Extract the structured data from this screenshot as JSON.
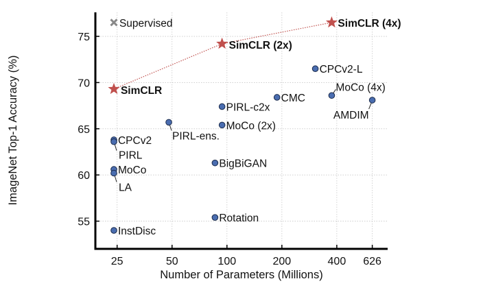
{
  "chart_data": {
    "type": "scatter",
    "title": "",
    "xlabel": "Number of Parameters (Millions)",
    "ylabel": "ImageNet Top-1 Accuracy (%)",
    "x_scale": "log",
    "xlim": [
      19,
      760
    ],
    "ylim": [
      52,
      77.6
    ],
    "x_ticks": [
      25,
      50,
      100,
      200,
      400,
      626
    ],
    "y_ticks": [
      55,
      60,
      65,
      70,
      75
    ],
    "grid": true,
    "colors": {
      "simclr": "#c0504d",
      "supervised": "#888888",
      "other": "#4a6db0",
      "simclr_line": "#c0504d"
    },
    "points": [
      {
        "name": "Supervised",
        "x": 24,
        "y": 76.5,
        "marker": "x",
        "group": "supervised"
      },
      {
        "name": "SimCLR",
        "x": 24,
        "y": 69.3,
        "marker": "star",
        "group": "simclr"
      },
      {
        "name": "SimCLR (2x)",
        "x": 94,
        "y": 74.2,
        "marker": "star",
        "group": "simclr"
      },
      {
        "name": "SimCLR (4x)",
        "x": 375,
        "y": 76.5,
        "marker": "star",
        "group": "simclr"
      },
      {
        "name": "CPCv2-L",
        "x": 305,
        "y": 71.5,
        "marker": "circle",
        "group": "other"
      },
      {
        "name": "MoCo (4x)",
        "x": 375,
        "y": 68.6,
        "marker": "circle",
        "group": "other"
      },
      {
        "name": "AMDIM",
        "x": 626,
        "y": 68.1,
        "marker": "circle",
        "group": "other"
      },
      {
        "name": "CMC",
        "x": 188,
        "y": 68.4,
        "marker": "circle",
        "group": "other"
      },
      {
        "name": "PIRL-c2x",
        "x": 94,
        "y": 67.4,
        "marker": "circle",
        "group": "other"
      },
      {
        "name": "MoCo (2x)",
        "x": 94,
        "y": 65.4,
        "marker": "circle",
        "group": "other"
      },
      {
        "name": "PIRL-ens.",
        "x": 48,
        "y": 65.7,
        "marker": "circle",
        "group": "other"
      },
      {
        "name": "BigBiGAN",
        "x": 86,
        "y": 61.3,
        "marker": "circle",
        "group": "other"
      },
      {
        "name": "Rotation",
        "x": 86,
        "y": 55.4,
        "marker": "circle",
        "group": "other"
      },
      {
        "name": "CPCv2",
        "x": 24,
        "y": 63.8,
        "marker": "circle",
        "group": "other"
      },
      {
        "name": "PIRL",
        "x": 24,
        "y": 63.6,
        "marker": "circle",
        "group": "other"
      },
      {
        "name": "MoCo",
        "x": 24,
        "y": 60.6,
        "marker": "circle",
        "group": "other"
      },
      {
        "name": "LA",
        "x": 24,
        "y": 60.2,
        "marker": "circle",
        "group": "other"
      },
      {
        "name": "InstDisc",
        "x": 24,
        "y": 54.0,
        "marker": "circle",
        "group": "other"
      }
    ]
  }
}
